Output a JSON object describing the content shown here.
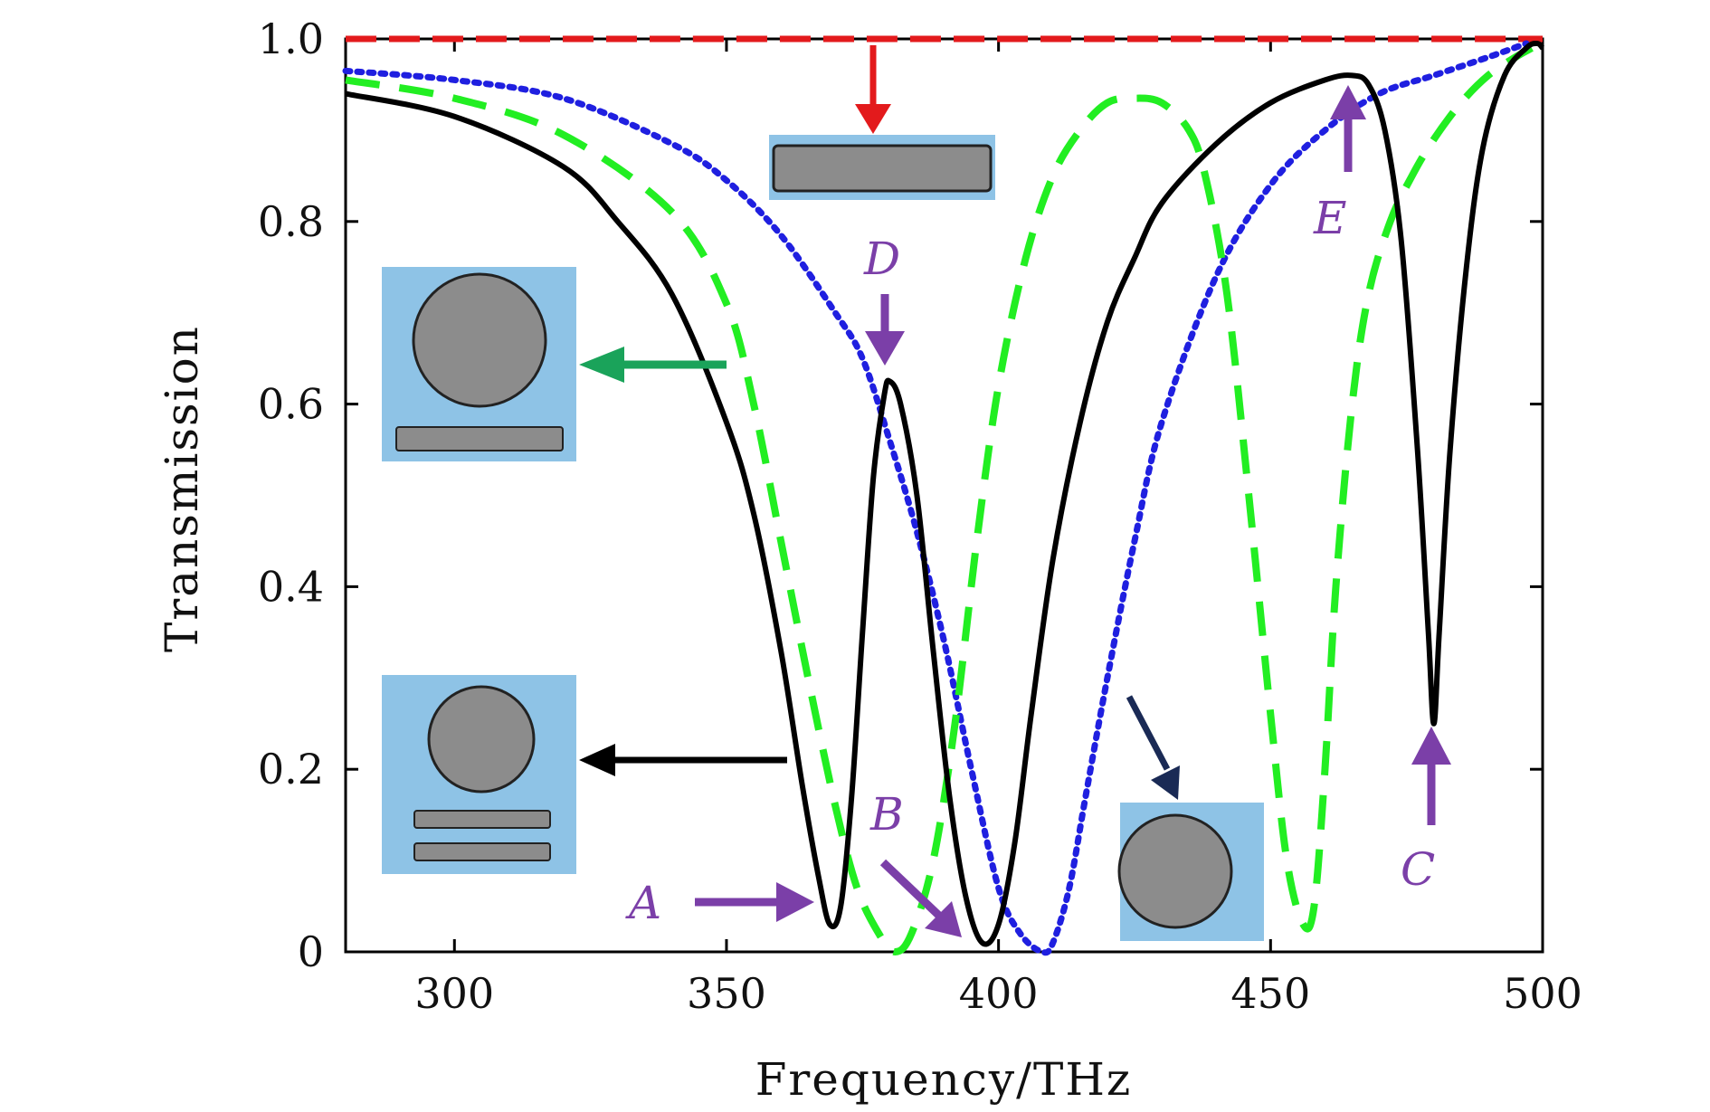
{
  "chart_data": {
    "type": "line",
    "xlabel": "Frequency/THz",
    "ylabel": "Transmission",
    "xlim": [
      280,
      500
    ],
    "ylim": [
      0,
      1.0
    ],
    "x_ticks": [
      300,
      350,
      400,
      450,
      500
    ],
    "x_tick_labels": [
      "300",
      "350",
      "400",
      "450",
      "500"
    ],
    "y_ticks": [
      0,
      0.2,
      0.4,
      0.6,
      0.8,
      1.0
    ],
    "y_tick_labels": [
      "0",
      "0.2",
      "0.4",
      "0.6",
      "0.8",
      "1.0"
    ],
    "grid": false,
    "series": [
      {
        "style": "dashed",
        "color": "#E31A1C",
        "x": [
          280,
          500
        ],
        "y": [
          1.0,
          1.0
        ]
      },
      {
        "style": "dotted",
        "color": "#1F1FE0",
        "x": [
          280,
          300,
          320,
          340,
          350,
          360,
          370,
          375,
          380,
          385,
          390,
          395,
          400,
          404,
          408,
          410,
          413,
          416,
          420,
          425,
          430,
          440,
          450,
          460,
          470,
          480,
          490,
          497
        ],
        "y": [
          0.965,
          0.955,
          0.935,
          0.885,
          0.845,
          0.785,
          0.7,
          0.65,
          0.56,
          0.46,
          0.34,
          0.2,
          0.07,
          0.02,
          0.0,
          0.01,
          0.07,
          0.17,
          0.3,
          0.45,
          0.58,
          0.74,
          0.84,
          0.9,
          0.94,
          0.96,
          0.98,
          0.995
        ]
      },
      {
        "style": "dashed",
        "color": "#22EE22",
        "x": [
          280,
          300,
          320,
          340,
          350,
          355,
          360,
          365,
          370,
          374,
          378,
          381,
          384,
          388,
          392,
          396,
          400,
          405,
          410,
          415,
          420,
          425,
          430,
          435,
          438,
          442,
          446,
          450,
          453,
          456,
          458,
          460,
          462,
          465,
          468,
          472,
          476,
          480,
          485,
          490,
          495,
          498
        ],
        "y": [
          0.955,
          0.935,
          0.895,
          0.81,
          0.71,
          0.6,
          0.45,
          0.3,
          0.16,
          0.07,
          0.02,
          0.0,
          0.02,
          0.1,
          0.25,
          0.45,
          0.62,
          0.76,
          0.85,
          0.9,
          0.93,
          0.935,
          0.93,
          0.9,
          0.85,
          0.72,
          0.5,
          0.26,
          0.1,
          0.03,
          0.05,
          0.2,
          0.4,
          0.6,
          0.72,
          0.8,
          0.85,
          0.89,
          0.93,
          0.96,
          0.98,
          0.99
        ]
      },
      {
        "style": "solid",
        "color": "#000000",
        "x": [
          280,
          300,
          320,
          330,
          340,
          350,
          355,
          360,
          364,
          367,
          369,
          371,
          373,
          375,
          377,
          379,
          380,
          382,
          385,
          388,
          391,
          394,
          397,
          400,
          403,
          406,
          410,
          415,
          420,
          425,
          430,
          440,
          450,
          460,
          465,
          468,
          471,
          474,
          477,
          479,
          480,
          481,
          483,
          486,
          489,
          493,
          497,
          499,
          500
        ],
        "y": [
          0.94,
          0.915,
          0.86,
          0.8,
          0.72,
          0.58,
          0.48,
          0.33,
          0.18,
          0.08,
          0.03,
          0.05,
          0.17,
          0.35,
          0.52,
          0.61,
          0.625,
          0.6,
          0.5,
          0.33,
          0.17,
          0.06,
          0.01,
          0.03,
          0.12,
          0.26,
          0.43,
          0.58,
          0.69,
          0.76,
          0.82,
          0.885,
          0.93,
          0.955,
          0.96,
          0.95,
          0.9,
          0.78,
          0.55,
          0.35,
          0.25,
          0.35,
          0.55,
          0.75,
          0.88,
          0.96,
          0.99,
          0.995,
          0.99
        ]
      }
    ],
    "annotations": [
      {
        "label": "A",
        "color": "#7B3FA8"
      },
      {
        "label": "B",
        "color": "#7B3FA8"
      },
      {
        "label": "C",
        "color": "#7B3FA8"
      },
      {
        "label": "D",
        "color": "#7B3FA8"
      },
      {
        "label": "E",
        "color": "#7B3FA8"
      }
    ],
    "colors": {
      "annotation": "#7B3FA8",
      "inset_background": "#8EC3E6",
      "inset_shape": "#8C8C8C",
      "arrow_red": "#E31A1C",
      "arrow_green": "#1AA35A",
      "arrow_black": "#000000",
      "arrow_navy": "#1A2A55"
    }
  }
}
